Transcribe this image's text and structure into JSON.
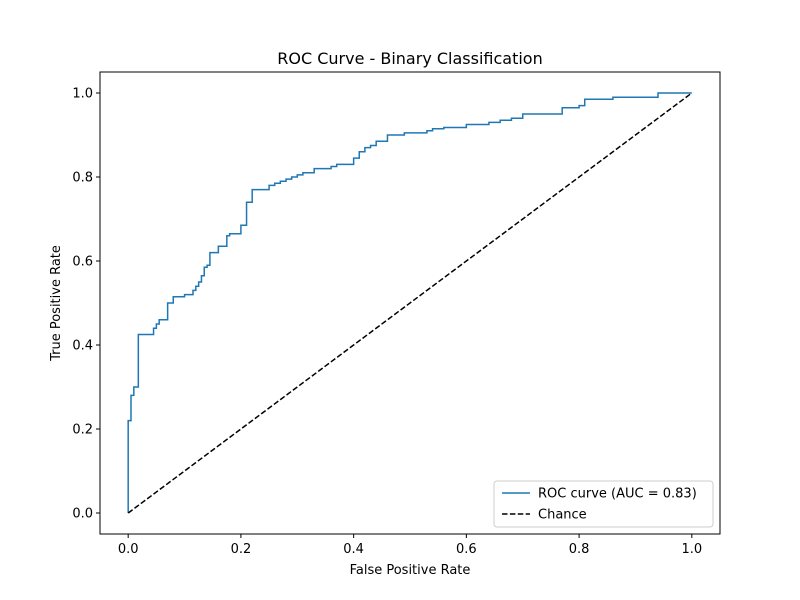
{
  "chart_data": {
    "type": "line",
    "title": "ROC Curve - Binary Classification",
    "xlabel": "False Positive Rate",
    "ylabel": "True Positive Rate",
    "xlim": [
      -0.05,
      1.05
    ],
    "ylim": [
      -0.05,
      1.05
    ],
    "xticks": [
      0.0,
      0.2,
      0.4,
      0.6,
      0.8,
      1.0
    ],
    "yticks": [
      0.0,
      0.2,
      0.4,
      0.6,
      0.8,
      1.0
    ],
    "xtick_labels": [
      "0.0",
      "0.2",
      "0.4",
      "0.6",
      "0.8",
      "1.0"
    ],
    "ytick_labels": [
      "0.0",
      "0.2",
      "0.4",
      "0.6",
      "0.8",
      "1.0"
    ],
    "legend_position": "bottom-right",
    "grid": false,
    "series": [
      {
        "name": "ROC curve (AUC = 0.83)",
        "color": "#1f77b4",
        "style": "solid",
        "step": true,
        "x": [
          0.0,
          0.0,
          0.005,
          0.005,
          0.01,
          0.01,
          0.018,
          0.018,
          0.045,
          0.045,
          0.05,
          0.05,
          0.055,
          0.055,
          0.07,
          0.07,
          0.08,
          0.08,
          0.1,
          0.1,
          0.115,
          0.115,
          0.12,
          0.12,
          0.125,
          0.125,
          0.13,
          0.13,
          0.135,
          0.135,
          0.14,
          0.14,
          0.145,
          0.145,
          0.16,
          0.16,
          0.175,
          0.175,
          0.18,
          0.18,
          0.2,
          0.2,
          0.21,
          0.21,
          0.22,
          0.22,
          0.25,
          0.25,
          0.26,
          0.26,
          0.27,
          0.27,
          0.28,
          0.28,
          0.29,
          0.29,
          0.3,
          0.3,
          0.31,
          0.31,
          0.33,
          0.33,
          0.36,
          0.36,
          0.37,
          0.37,
          0.4,
          0.4,
          0.41,
          0.41,
          0.42,
          0.42,
          0.43,
          0.43,
          0.44,
          0.44,
          0.46,
          0.46,
          0.49,
          0.49,
          0.53,
          0.53,
          0.54,
          0.54,
          0.56,
          0.56,
          0.6,
          0.6,
          0.64,
          0.64,
          0.66,
          0.66,
          0.68,
          0.68,
          0.7,
          0.7,
          0.77,
          0.77,
          0.8,
          0.8,
          0.81,
          0.81,
          0.86,
          0.86,
          0.94,
          0.94,
          1.0
        ],
        "y": [
          0.0,
          0.22,
          0.22,
          0.28,
          0.28,
          0.3,
          0.3,
          0.425,
          0.425,
          0.44,
          0.44,
          0.45,
          0.45,
          0.46,
          0.46,
          0.5,
          0.5,
          0.515,
          0.515,
          0.52,
          0.52,
          0.53,
          0.53,
          0.54,
          0.54,
          0.55,
          0.55,
          0.565,
          0.565,
          0.585,
          0.585,
          0.59,
          0.59,
          0.62,
          0.62,
          0.635,
          0.635,
          0.66,
          0.66,
          0.665,
          0.665,
          0.685,
          0.685,
          0.74,
          0.74,
          0.77,
          0.77,
          0.78,
          0.78,
          0.785,
          0.785,
          0.79,
          0.79,
          0.795,
          0.795,
          0.8,
          0.8,
          0.805,
          0.805,
          0.81,
          0.81,
          0.82,
          0.82,
          0.825,
          0.825,
          0.83,
          0.83,
          0.845,
          0.845,
          0.86,
          0.86,
          0.87,
          0.87,
          0.875,
          0.875,
          0.885,
          0.885,
          0.9,
          0.9,
          0.905,
          0.905,
          0.91,
          0.91,
          0.915,
          0.915,
          0.918,
          0.918,
          0.925,
          0.925,
          0.93,
          0.93,
          0.935,
          0.935,
          0.94,
          0.94,
          0.95,
          0.95,
          0.965,
          0.965,
          0.97,
          0.97,
          0.985,
          0.985,
          0.99,
          0.99,
          1.0,
          1.0
        ]
      },
      {
        "name": "Chance",
        "color": "#000000",
        "style": "dashed",
        "step": false,
        "x": [
          0.0,
          1.0
        ],
        "y": [
          0.0,
          1.0
        ]
      }
    ]
  }
}
